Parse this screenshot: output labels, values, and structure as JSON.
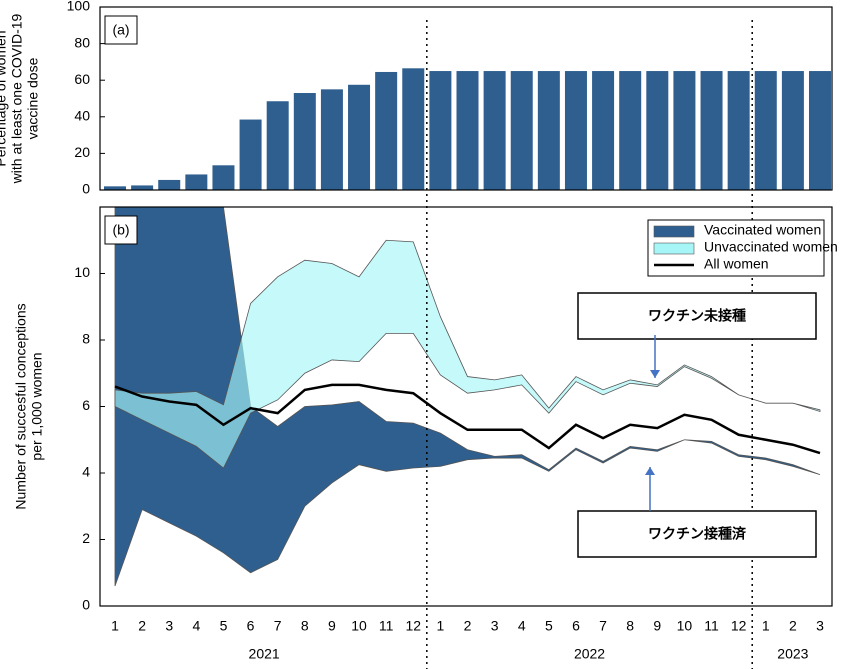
{
  "chart_data": [
    {
      "type": "bar",
      "title": "(a)",
      "ylabel": [
        "Percentage of women",
        "with at least one COVID-19",
        "vaccine dose"
      ],
      "values": [
        2,
        2.5,
        5.5,
        8.5,
        13.5,
        38.5,
        48.5,
        53,
        55,
        57.5,
        64.5,
        66.5,
        65,
        65,
        65,
        65,
        65,
        65,
        65,
        65,
        65,
        65,
        65,
        65,
        65,
        65,
        65
      ],
      "color": "#2e5f8f",
      "ylim": [
        0,
        100
      ],
      "yticks": [
        0,
        20,
        40,
        60,
        80,
        100
      ]
    },
    {
      "type": "band",
      "title": "(b)",
      "ylabel": [
        "Number of succesful conceptions",
        "per 1,000 women"
      ],
      "categories": [
        "1",
        "2",
        "3",
        "4",
        "5",
        "6",
        "7",
        "8",
        "9",
        "10",
        "11",
        "12",
        "1",
        "2",
        "3",
        "4",
        "5",
        "6",
        "7",
        "8",
        "9",
        "10",
        "11",
        "12",
        "1",
        "2",
        "3"
      ],
      "year_labels": [
        "2021",
        "2022",
        "2023"
      ],
      "series": [
        {
          "name": "Vaccinated women",
          "color": "#2e5f8f",
          "values": [
            12,
            12,
            12,
            12,
            12,
            6.0,
            5.4,
            6.0,
            6.05,
            6.15,
            5.55,
            5.5,
            5.2,
            4.7,
            4.5,
            4.55,
            4.1,
            4.75,
            4.35,
            4.8,
            4.7,
            5.0,
            4.95,
            4.55,
            4.45,
            4.25,
            3.95
          ],
          "lower": [
            0.6,
            2.9,
            2.5,
            2.1,
            1.6,
            1.0,
            1.4,
            3.0,
            3.7,
            4.25,
            4.05,
            4.15,
            4.2,
            4.4,
            4.45,
            4.45,
            4.05,
            4.7,
            4.3,
            4.75,
            4.65,
            5.0,
            4.9,
            4.5,
            4.4,
            4.2,
            3.95
          ]
        },
        {
          "name": "Unvaccinated women",
          "color": "#a6f6f8",
          "values": [
            6.5,
            6.4,
            6.4,
            6.45,
            6.05,
            9.1,
            9.9,
            10.4,
            10.3,
            9.9,
            11.0,
            10.95,
            8.7,
            6.9,
            6.8,
            6.95,
            5.95,
            6.9,
            6.5,
            6.8,
            6.65,
            7.25,
            6.9,
            6.35,
            6.1,
            6.1,
            5.9
          ],
          "lower": [
            6.0,
            5.6,
            5.2,
            4.8,
            4.15,
            5.8,
            6.2,
            7.0,
            7.4,
            7.35,
            8.2,
            8.2,
            6.95,
            6.4,
            6.5,
            6.65,
            5.8,
            6.75,
            6.35,
            6.7,
            6.6,
            7.2,
            6.85,
            6.35,
            6.1,
            6.1,
            5.85
          ]
        },
        {
          "name": "All women",
          "color": "#000000",
          "values": [
            6.6,
            6.3,
            6.15,
            6.05,
            5.45,
            5.95,
            5.8,
            6.5,
            6.65,
            6.65,
            6.5,
            6.4,
            5.8,
            5.3,
            5.3,
            5.3,
            4.75,
            5.45,
            5.05,
            5.45,
            5.35,
            5.75,
            5.6,
            5.15,
            5.0,
            4.85,
            4.6
          ]
        }
      ],
      "legend": "upper right",
      "annotations": [
        {
          "text": "ワクチン未接種",
          "color": "#4472c4"
        },
        {
          "text": "ワクチン接種済",
          "color": "#e00000"
        }
      ],
      "ylim": [
        0,
        12
      ],
      "yticks": [
        0,
        2,
        4,
        6,
        8,
        10
      ]
    }
  ]
}
